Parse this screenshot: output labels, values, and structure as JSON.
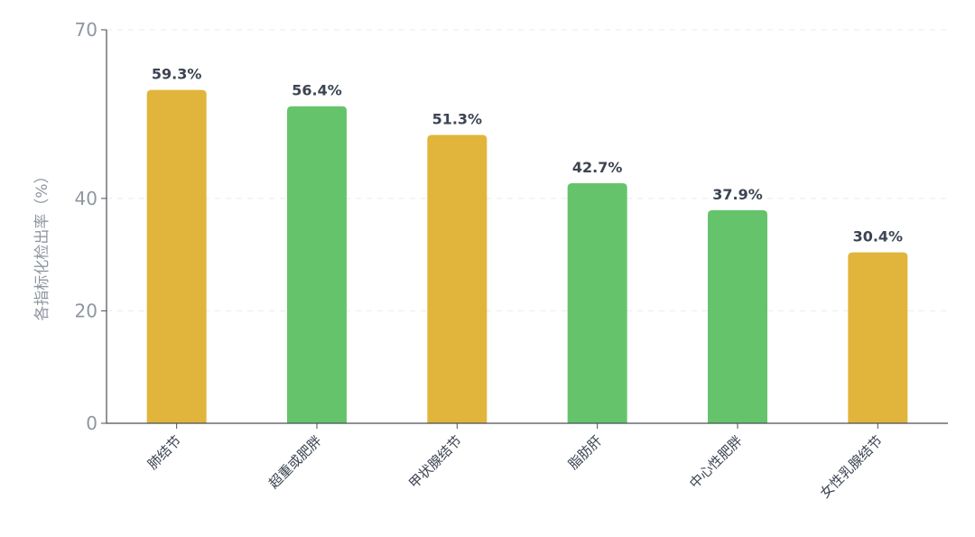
{
  "chart_data": {
    "type": "bar",
    "ylabel": "各指标化检出率（%）",
    "xlabel": "",
    "ylim": [
      0,
      70
    ],
    "yticks": [
      0,
      20,
      40,
      70
    ],
    "grid": true,
    "categories": [
      "肺结节",
      "超重或肥胖",
      "甲状腺结节",
      "脂肪肝",
      "中心性肥胖",
      "女性乳腺结节"
    ],
    "values": [
      59.3,
      56.4,
      51.3,
      42.7,
      37.9,
      30.4
    ],
    "value_labels": [
      "59.3%",
      "56.4%",
      "51.3%",
      "42.7%",
      "37.9%",
      "30.4%"
    ],
    "bar_colors": [
      "#e1b43b",
      "#65c46b",
      "#e1b43b",
      "#65c46b",
      "#65c46b",
      "#e1b43b"
    ],
    "axis_color": "#4a4f57",
    "grid_color": "#e9ebee"
  }
}
